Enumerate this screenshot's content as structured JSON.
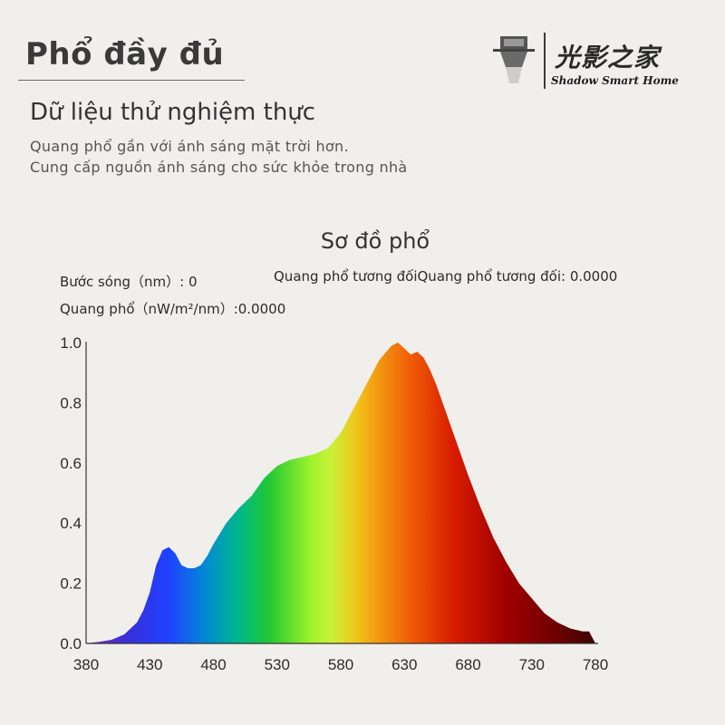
{
  "header": {
    "title": "Phổ đầy đủ",
    "logo_cn": "光影之家",
    "logo_en": "Shadow Smart Home"
  },
  "intro": {
    "subtitle": "Dữ liệu thử nghiệm thực",
    "line1": "Quang phổ gần với ánh sáng mặt trời hơn.",
    "line2": "Cung cấp nguồn ánh sáng cho sức khỏe trong nhà"
  },
  "readouts": {
    "wavelength": "Bước sóng（nm）: 0",
    "relative": "Quang phổ tương đốiQuang phổ tương đối:  0.0000",
    "spectrum": "Quang phổ（nW/m²/nm）:0.0000"
  },
  "chart_data": {
    "type": "area",
    "title": "Sơ đồ phổ",
    "xlabel": "",
    "ylabel": "",
    "xlim": [
      380,
      780
    ],
    "ylim": [
      0,
      1.0
    ],
    "x_ticks": [
      380,
      430,
      480,
      530,
      580,
      630,
      680,
      730,
      780
    ],
    "y_ticks": [
      "0.0",
      "0.2",
      "0.4",
      "0.6",
      "0.8",
      "1.0"
    ],
    "grid": false,
    "fill": "wavelength color gradient",
    "series": [
      {
        "x": [
          380,
          390,
          400,
          410,
          420,
          425,
          430,
          435,
          440,
          445,
          450,
          455,
          460,
          465,
          470,
          475,
          480,
          490,
          500,
          510,
          520,
          530,
          540,
          550,
          560,
          570,
          580,
          590,
          600,
          610,
          620,
          625,
          630,
          635,
          640,
          645,
          650,
          655,
          660,
          670,
          680,
          690,
          700,
          710,
          720,
          730,
          740,
          750,
          760,
          770,
          775,
          780
        ],
        "values": [
          0.0,
          0.005,
          0.012,
          0.03,
          0.07,
          0.11,
          0.17,
          0.26,
          0.31,
          0.32,
          0.3,
          0.26,
          0.25,
          0.25,
          0.26,
          0.29,
          0.33,
          0.4,
          0.45,
          0.49,
          0.55,
          0.59,
          0.61,
          0.62,
          0.63,
          0.65,
          0.7,
          0.78,
          0.86,
          0.94,
          0.99,
          1.0,
          0.98,
          0.96,
          0.97,
          0.95,
          0.91,
          0.86,
          0.8,
          0.68,
          0.56,
          0.45,
          0.35,
          0.27,
          0.2,
          0.15,
          0.1,
          0.07,
          0.05,
          0.04,
          0.04,
          0.0
        ]
      }
    ]
  }
}
